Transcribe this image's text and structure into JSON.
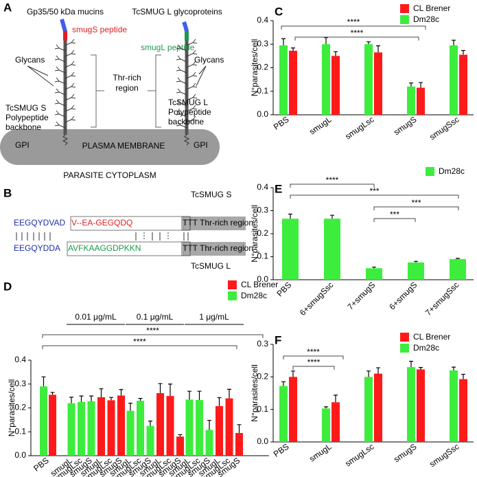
{
  "diagram_a": {
    "label": "A",
    "left_title": "Gp35/50 kDa mucins",
    "right_title": "TcSMUG L glycoproteins",
    "smugS_peptide": "smugS peptide",
    "smugL_peptide": "smugL peptide",
    "left_glycans": "Glycans",
    "right_glycans": "Glycans",
    "thr_region": [
      "Thr-rich",
      "region"
    ],
    "left_backbone": [
      "TcSMUG S",
      "Polypeptide",
      "backbone"
    ],
    "right_backbone": [
      "TcSMUG L",
      "Polypeptide",
      "backbone"
    ],
    "left_gpi": "GPI",
    "right_gpi": "GPI",
    "membrane": "PLASMA MEMBRANE",
    "cytoplasm": "PARASITE CYTOPLASM"
  },
  "sequence_b": {
    "label": "B",
    "top_name": "TcSMUG S",
    "bottom_name": "TcSMUG L",
    "top": {
      "conserved": "EEGQYDVAD",
      "peptide": "V--EA-GEGQDQ",
      "thr": "TTT",
      "region": "Thr-rich region"
    },
    "bottom": {
      "conserved": "EEGQYDDA",
      "peptide": "AVFKAAGGDPKKN",
      "thr": "TTT",
      "region": "Thr-rich region"
    }
  },
  "chart_data": [
    {
      "type": "bar",
      "panel": "C",
      "y_label": "N°parasites/cell",
      "categories": [
        "PBS",
        "smugL",
        "smugLsc",
        "smugS",
        "smugSsc"
      ],
      "series": [
        {
          "name": "CL Brener",
          "color": "#ff1a1a",
          "values": [
            0.272,
            0.25,
            0.265,
            0.115,
            0.255
          ],
          "errors": [
            0.012,
            0.018,
            0.028,
            0.022,
            0.018
          ]
        },
        {
          "name": "Dm28c",
          "color": "#3ded3d",
          "values": [
            0.295,
            0.3,
            0.3,
            0.12,
            0.295
          ],
          "errors": [
            0.028,
            0.028,
            0.01,
            0.015,
            0.022
          ]
        }
      ],
      "ylim": [
        0,
        0.4
      ],
      "yticks": [
        {
          "value": 0,
          "label": "0.0"
        },
        0.1,
        0.2,
        0.3,
        0.4
      ],
      "significance": [
        "****",
        "****"
      ]
    },
    {
      "type": "bar",
      "panel": "D",
      "y_label": "N°parasites/cell",
      "categories": [
        "PBS",
        "smugL",
        "smugLsc",
        "smugS",
        "smugL",
        "smugLsc",
        "smugS",
        "smugL",
        "smugLsc",
        "smugS",
        "smugL",
        "smugLsc",
        "smugS",
        "smugL",
        "smugLsc",
        "smugS",
        "smugL",
        "smugLsc",
        "smugS"
      ],
      "series": [
        {
          "name": "CL Brener",
          "color": "#ff1a1a",
          "values": [
            0.255,
            null,
            null,
            null,
            0.245,
            0.232,
            0.252,
            null,
            null,
            null,
            0.262,
            0.25,
            0.08,
            null,
            null,
            null,
            0.208,
            0.24,
            0.095
          ],
          "errors": [
            0.01,
            null,
            null,
            null,
            0.035,
            0.012,
            0.025,
            null,
            null,
            null,
            0.04,
            0.05,
            0.008,
            null,
            null,
            null,
            0.035,
            0.038,
            0.035
          ]
        },
        {
          "name": "Dm28c",
          "color": "#3ded3d",
          "values": [
            0.29,
            0.22,
            0.225,
            0.228,
            null,
            null,
            null,
            0.188,
            0.23,
            0.125,
            null,
            null,
            null,
            0.235,
            0.233,
            0.108,
            null,
            null,
            null
          ],
          "errors": [
            0.04,
            0.025,
            0.025,
            0.022,
            null,
            null,
            null,
            0.032,
            0.01,
            0.02,
            null,
            null,
            null,
            0.035,
            0.037,
            0.04,
            null,
            null,
            null
          ]
        }
      ],
      "ylim": [
        0,
        0.4
      ],
      "yticks": [
        {
          "value": 0,
          "label": "0.0"
        },
        0.1,
        0.2,
        0.3,
        0.4
      ],
      "dose_labels": [
        "0.01 μg/mL",
        "0.1 μg/mL",
        "1 μg/mL"
      ],
      "significance": [
        "****",
        "****"
      ]
    },
    {
      "type": "bar",
      "panel": "E",
      "y_label": "N°parasites/cell",
      "categories": [
        "PBS",
        "6+smugSsc",
        "7+smugS",
        "6+smugS",
        "7+smugSsc"
      ],
      "series": [
        {
          "name": "Dm28c",
          "color": "#3ded3d",
          "values": [
            0.265,
            0.265,
            0.05,
            0.075,
            0.09
          ],
          "errors": [
            0.02,
            0.015,
            0.005,
            0.005,
            0.003
          ]
        }
      ],
      "ylim": [
        0,
        0.4
      ],
      "yticks": [
        {
          "value": 0,
          "label": "0.0"
        },
        0.1,
        0.2,
        0.3,
        0.4
      ],
      "significance": [
        "****",
        "***",
        "***",
        "***"
      ]
    },
    {
      "type": "bar",
      "panel": "F",
      "y_label": "N°parasites/cell",
      "categories": [
        "PBS",
        "smugL",
        "smugLsc",
        "smugS",
        "smugSsc"
      ],
      "series": [
        {
          "name": "CL Brener",
          "color": "#ff1a1a",
          "values": [
            0.2,
            0.122,
            0.21,
            0.223,
            0.193
          ],
          "errors": [
            0.018,
            0.022,
            0.018,
            0.006,
            0.015
          ]
        },
        {
          "name": "Dm28c",
          "color": "#3ded3d",
          "values": [
            0.172,
            0.103,
            0.2,
            0.23,
            0.22
          ],
          "errors": [
            0.013,
            0.005,
            0.018,
            0.018,
            0.01
          ]
        }
      ],
      "ylim": [
        0,
        0.3
      ],
      "yticks": [
        {
          "value": 0,
          "label": "0.0"
        },
        0.1,
        0.2,
        0.3
      ],
      "significance": [
        "****",
        "****"
      ]
    }
  ]
}
